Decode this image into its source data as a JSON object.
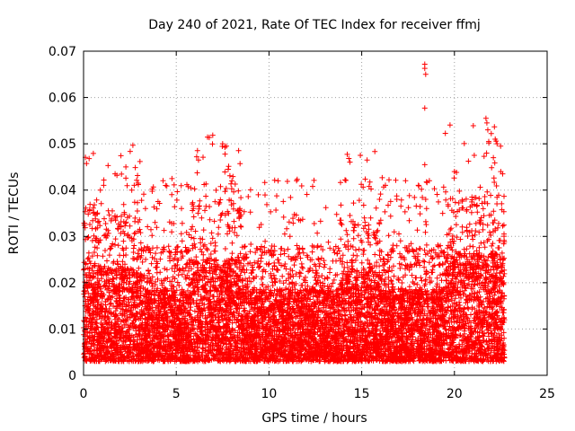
{
  "chart_data": {
    "type": "scatter",
    "title": "Day 240 of 2021, Rate Of TEC Index for receiver ffmj",
    "xlabel": "GPS time / hours",
    "ylabel": "ROTI / TECUs",
    "xlim": [
      0,
      25
    ],
    "ylim": [
      0,
      0.07
    ],
    "xticks": [
      0,
      5,
      10,
      15,
      20,
      25
    ],
    "yticks": [
      0,
      0.01,
      0.02,
      0.03,
      0.04,
      0.05,
      0.06,
      0.07
    ],
    "xtick_labels": [
      "0",
      "5",
      "10",
      "15",
      "20",
      "25"
    ],
    "ytick_labels": [
      "0",
      "0.01",
      "0.02",
      "0.03",
      "0.04",
      "0.05",
      "0.06",
      "0.07"
    ],
    "grid": true,
    "marker": "+",
    "color": "#ff0000",
    "data_x_range": [
      0,
      22.7
    ],
    "series": [
      {
        "name": "ROTI",
        "description_points": "dense scatter of ROTI values between about 0.002 and 0.045 over 0-22.7 h",
        "notable_points": [
          {
            "x": 0.3,
            "y": 0.0468
          },
          {
            "x": 1.7,
            "y": 0.0435
          },
          {
            "x": 1.8,
            "y": 0.0432
          },
          {
            "x": 2.6,
            "y": 0.04
          },
          {
            "x": 3.7,
            "y": 0.0402
          },
          {
            "x": 6.1,
            "y": 0.0472
          },
          {
            "x": 6.2,
            "y": 0.0465
          },
          {
            "x": 7.5,
            "y": 0.05
          },
          {
            "x": 7.7,
            "y": 0.0495
          },
          {
            "x": 7.8,
            "y": 0.0445
          },
          {
            "x": 8.0,
            "y": 0.042
          },
          {
            "x": 14.1,
            "y": 0.0422
          },
          {
            "x": 15.4,
            "y": 0.0408
          },
          {
            "x": 18.4,
            "y": 0.0672
          },
          {
            "x": 18.4,
            "y": 0.0663
          },
          {
            "x": 18.45,
            "y": 0.065
          },
          {
            "x": 18.4,
            "y": 0.0577
          },
          {
            "x": 18.4,
            "y": 0.0455
          },
          {
            "x": 18.45,
            "y": 0.038
          },
          {
            "x": 20.0,
            "y": 0.044
          },
          {
            "x": 21.7,
            "y": 0.0555
          },
          {
            "x": 21.75,
            "y": 0.0545
          },
          {
            "x": 21.8,
            "y": 0.053
          },
          {
            "x": 21.85,
            "y": 0.0505
          },
          {
            "x": 22.1,
            "y": 0.047
          },
          {
            "x": 22.2,
            "y": 0.051
          },
          {
            "x": 22.3,
            "y": 0.05
          },
          {
            "x": 22.5,
            "y": 0.044
          },
          {
            "x": 22.6,
            "y": 0.0435
          }
        ]
      }
    ]
  }
}
